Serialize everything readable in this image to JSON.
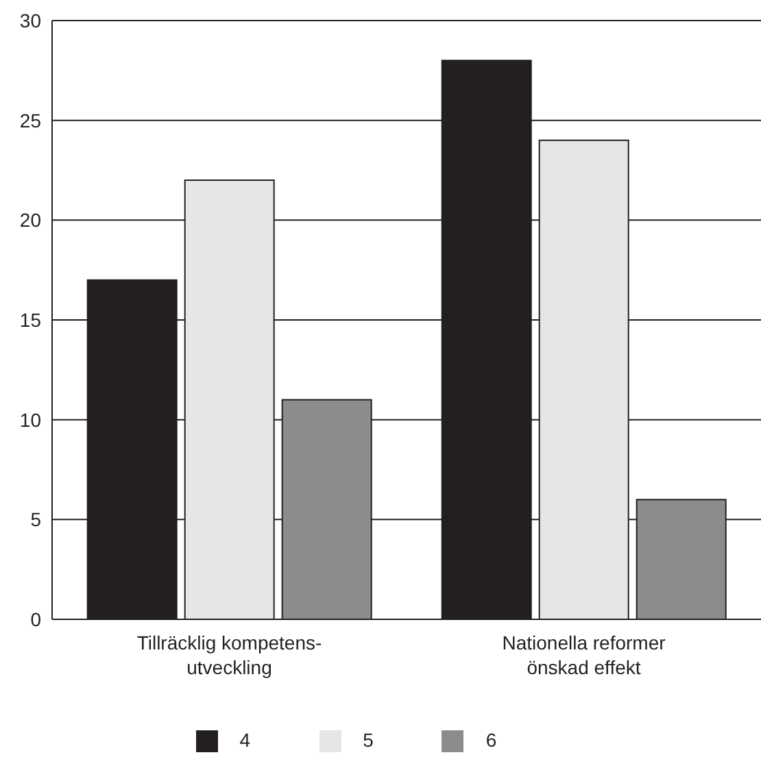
{
  "chart_data": {
    "type": "bar",
    "categories": [
      "Tillräcklig kompetens-utveckling",
      "Nationella reformer önskad effekt"
    ],
    "series": [
      {
        "name": "4",
        "color": "#231f20",
        "values": [
          17,
          28
        ]
      },
      {
        "name": "5",
        "color": "#e6e6e7",
        "values": [
          22,
          24
        ]
      },
      {
        "name": "6",
        "color": "#8c8c8f",
        "values": [
          11,
          6
        ]
      }
    ],
    "ylim": [
      0,
      30
    ],
    "yticks": [
      0,
      5,
      10,
      15,
      20,
      25,
      30
    ],
    "grid": "y",
    "legend": "bottom"
  }
}
